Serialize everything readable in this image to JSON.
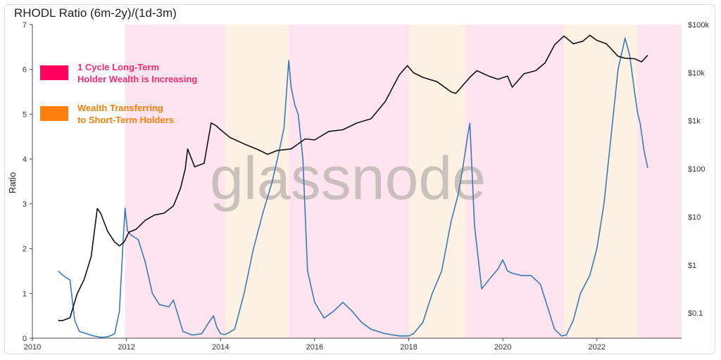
{
  "title": "RHODL Ratio (6m-2y)/(1d-3m)",
  "watermark": "glassnode",
  "legend": [
    {
      "color": "#ff005c",
      "text_color": "#ff2a6d",
      "lines": [
        "1 Cycle Long-Term",
        "Holder Wealth is Increasing"
      ]
    },
    {
      "color": "#ff7f0e",
      "text_color": "#ff7f0e",
      "lines": [
        "Wealth Transferring",
        "to Short-Term Holders"
      ]
    }
  ],
  "chart_data": {
    "type": "line",
    "title": "RHODL Ratio (6m-2y)/(1d-3m)",
    "xlabel": "",
    "ylabel": "Ratio",
    "xlim": [
      2010,
      2023.8
    ],
    "ylim": [
      0,
      7
    ],
    "x_ticks": [
      "2010",
      "2012",
      "2014",
      "2016",
      "2018",
      "2020",
      "2022"
    ],
    "y_ticks": [
      "0",
      "1",
      "2",
      "3",
      "4",
      "5",
      "6",
      "7"
    ],
    "y2_scale": "log",
    "y2_ticks": [
      "$0.1",
      "$1",
      "$10",
      "$100",
      "$1k",
      "$10k",
      "$100k"
    ],
    "y2_range": [
      0.03,
      100000
    ],
    "background_bands": [
      {
        "phase": "long-term",
        "color": "#fde4ee",
        "start": 2011.97,
        "end": 2014.1
      },
      {
        "phase": "short-term",
        "color": "#fdf1e3",
        "start": 2014.1,
        "end": 2015.45
      },
      {
        "phase": "long-term",
        "color": "#fde4ee",
        "start": 2015.45,
        "end": 2018.02
      },
      {
        "phase": "short-term",
        "color": "#fdf1e3",
        "start": 2018.02,
        "end": 2019.2
      },
      {
        "phase": "long-term",
        "color": "#fde4ee",
        "start": 2019.2,
        "end": 2021.3
      },
      {
        "phase": "short-term",
        "color": "#fdf1e3",
        "start": 2021.3,
        "end": 2022.85
      },
      {
        "phase": "long-term",
        "color": "#fde4ee",
        "start": 2022.85,
        "end": 2023.8
      }
    ],
    "series": [
      {
        "color": "#3a7ab8",
        "axis": "left",
        "x": [
          2010.55,
          2010.65,
          2010.8,
          2010.9,
          2011.0,
          2011.15,
          2011.3,
          2011.45,
          2011.6,
          2011.75,
          2011.85,
          2011.92,
          2011.97,
          2012.02,
          2012.1,
          2012.25,
          2012.4,
          2012.55,
          2012.7,
          2012.9,
          2013.0,
          2013.2,
          2013.4,
          2013.6,
          2013.75,
          2013.85,
          2013.92,
          2014.0,
          2014.1,
          2014.3,
          2014.5,
          2014.7,
          2014.9,
          2015.1,
          2015.25,
          2015.35,
          2015.45,
          2015.5,
          2015.58,
          2015.65,
          2015.75,
          2015.85,
          2016.0,
          2016.2,
          2016.4,
          2016.6,
          2016.8,
          2017.0,
          2017.2,
          2017.5,
          2017.8,
          2018.0,
          2018.1,
          2018.3,
          2018.5,
          2018.7,
          2018.9,
          2019.05,
          2019.15,
          2019.25,
          2019.3,
          2019.4,
          2019.55,
          2019.7,
          2019.9,
          2020.0,
          2020.1,
          2020.2,
          2020.4,
          2020.6,
          2020.8,
          2020.95,
          2021.1,
          2021.25,
          2021.35,
          2021.5,
          2021.65,
          2021.75,
          2021.85,
          2022.0,
          2022.15,
          2022.3,
          2022.45,
          2022.6,
          2022.7,
          2022.8,
          2022.87,
          2022.92,
          2023.0,
          2023.08
        ],
        "y": [
          1.5,
          1.4,
          1.3,
          0.4,
          0.15,
          0.1,
          0.05,
          0.02,
          0.03,
          0.1,
          0.6,
          2.0,
          2.9,
          2.4,
          2.3,
          2.2,
          1.7,
          1.0,
          0.75,
          0.7,
          0.85,
          0.15,
          0.07,
          0.1,
          0.35,
          0.5,
          0.25,
          0.1,
          0.08,
          0.2,
          1.0,
          2.0,
          2.8,
          3.5,
          4.2,
          4.7,
          6.2,
          5.6,
          5.2,
          5.0,
          4.0,
          1.5,
          0.8,
          0.45,
          0.6,
          0.8,
          0.6,
          0.35,
          0.2,
          0.1,
          0.05,
          0.05,
          0.1,
          0.35,
          1.0,
          1.5,
          2.6,
          3.2,
          3.8,
          4.5,
          4.8,
          2.5,
          1.1,
          1.3,
          1.55,
          1.75,
          1.5,
          1.45,
          1.4,
          1.4,
          1.2,
          0.7,
          0.2,
          0.05,
          0.07,
          0.4,
          1.0,
          1.2,
          1.4,
          2.0,
          3.0,
          4.5,
          6.0,
          6.7,
          6.3,
          5.5,
          5.0,
          4.8,
          4.2,
          3.8
        ]
      },
      {
        "color": "#111111",
        "axis": "right",
        "x": [
          2010.55,
          2010.65,
          2010.8,
          2010.95,
          2011.1,
          2011.25,
          2011.38,
          2011.45,
          2011.6,
          2011.75,
          2011.85,
          2011.95,
          2012.05,
          2012.2,
          2012.4,
          2012.6,
          2012.8,
          2013.0,
          2013.15,
          2013.25,
          2013.3,
          2013.45,
          2013.65,
          2013.8,
          2013.9,
          2014.0,
          2014.2,
          2014.5,
          2014.8,
          2015.0,
          2015.2,
          2015.5,
          2015.8,
          2016.0,
          2016.3,
          2016.6,
          2016.9,
          2017.2,
          2017.5,
          2017.8,
          2017.97,
          2018.1,
          2018.3,
          2018.6,
          2018.9,
          2019.0,
          2019.3,
          2019.45,
          2019.7,
          2019.9,
          2020.1,
          2020.2,
          2020.45,
          2020.7,
          2020.9,
          2021.1,
          2021.3,
          2021.5,
          2021.7,
          2021.85,
          2022.0,
          2022.2,
          2022.45,
          2022.6,
          2022.8,
          2022.95,
          2023.08
        ],
        "y": [
          0.07,
          0.07,
          0.08,
          0.25,
          0.5,
          1.5,
          15,
          12,
          5,
          3,
          2.5,
          3,
          4.8,
          5.5,
          8.5,
          11,
          12,
          17,
          40,
          100,
          260,
          110,
          130,
          900,
          800,
          650,
          450,
          330,
          250,
          200,
          240,
          260,
          420,
          400,
          600,
          650,
          900,
          1100,
          2500,
          9000,
          14000,
          10000,
          8000,
          6500,
          4000,
          3700,
          8000,
          11000,
          8500,
          7300,
          8500,
          5000,
          9500,
          11000,
          16000,
          38000,
          58000,
          40000,
          45000,
          60000,
          47000,
          40000,
          22000,
          20000,
          19500,
          16800,
          23000
        ]
      }
    ]
  }
}
